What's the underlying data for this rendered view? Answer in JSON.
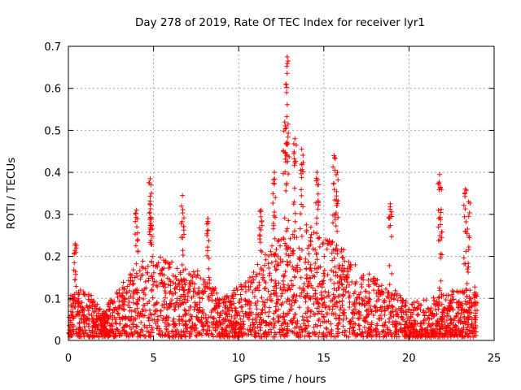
{
  "chart_data": {
    "type": "scatter",
    "title": "Day 278 of 2019, Rate Of TEC Index for receiver lyr1",
    "xlabel": "GPS time / hours",
    "ylabel": "ROTI / TECUs",
    "xlim": [
      0,
      25
    ],
    "ylim": [
      0,
      0.7
    ],
    "xticks": [
      "0",
      "5",
      "10",
      "15",
      "20",
      "25"
    ],
    "yticks": [
      "0",
      "0.1",
      "0.2",
      "0.3",
      "0.4",
      "0.5",
      "0.6",
      "0.7"
    ],
    "grid": true,
    "marker": "+",
    "color": "#ff0000",
    "series": [
      {
        "name": "ROTI",
        "baseline": {
          "description": "dense near-continuous envelope, approximate upper level per hour",
          "x": [
            0,
            1,
            2,
            3,
            4,
            5,
            6,
            7,
            8,
            9,
            10,
            11,
            12,
            13,
            14,
            15,
            16,
            17,
            18,
            19,
            20,
            21,
            22,
            23,
            24
          ],
          "y_max": [
            0.1,
            0.12,
            0.06,
            0.12,
            0.17,
            0.2,
            0.18,
            0.17,
            0.15,
            0.1,
            0.12,
            0.17,
            0.22,
            0.25,
            0.27,
            0.24,
            0.22,
            0.17,
            0.14,
            0.12,
            0.08,
            0.09,
            0.1,
            0.12,
            0.12
          ]
        },
        "peaks": [
          {
            "x": 0.4,
            "y": 0.23
          },
          {
            "x": 4.0,
            "y": 0.31
          },
          {
            "x": 4.8,
            "y": 0.385
          },
          {
            "x": 4.85,
            "y": 0.37
          },
          {
            "x": 6.7,
            "y": 0.345
          },
          {
            "x": 8.2,
            "y": 0.29
          },
          {
            "x": 11.3,
            "y": 0.31
          },
          {
            "x": 12.1,
            "y": 0.4
          },
          {
            "x": 12.7,
            "y": 0.52
          },
          {
            "x": 12.85,
            "y": 0.675
          },
          {
            "x": 12.9,
            "y": 0.665
          },
          {
            "x": 13.3,
            "y": 0.48
          },
          {
            "x": 13.7,
            "y": 0.455
          },
          {
            "x": 14.6,
            "y": 0.4
          },
          {
            "x": 15.6,
            "y": 0.44
          },
          {
            "x": 15.8,
            "y": 0.4
          },
          {
            "x": 18.9,
            "y": 0.325
          },
          {
            "x": 21.8,
            "y": 0.395
          },
          {
            "x": 21.85,
            "y": 0.365
          },
          {
            "x": 23.3,
            "y": 0.36
          },
          {
            "x": 23.5,
            "y": 0.33
          }
        ]
      }
    ]
  }
}
